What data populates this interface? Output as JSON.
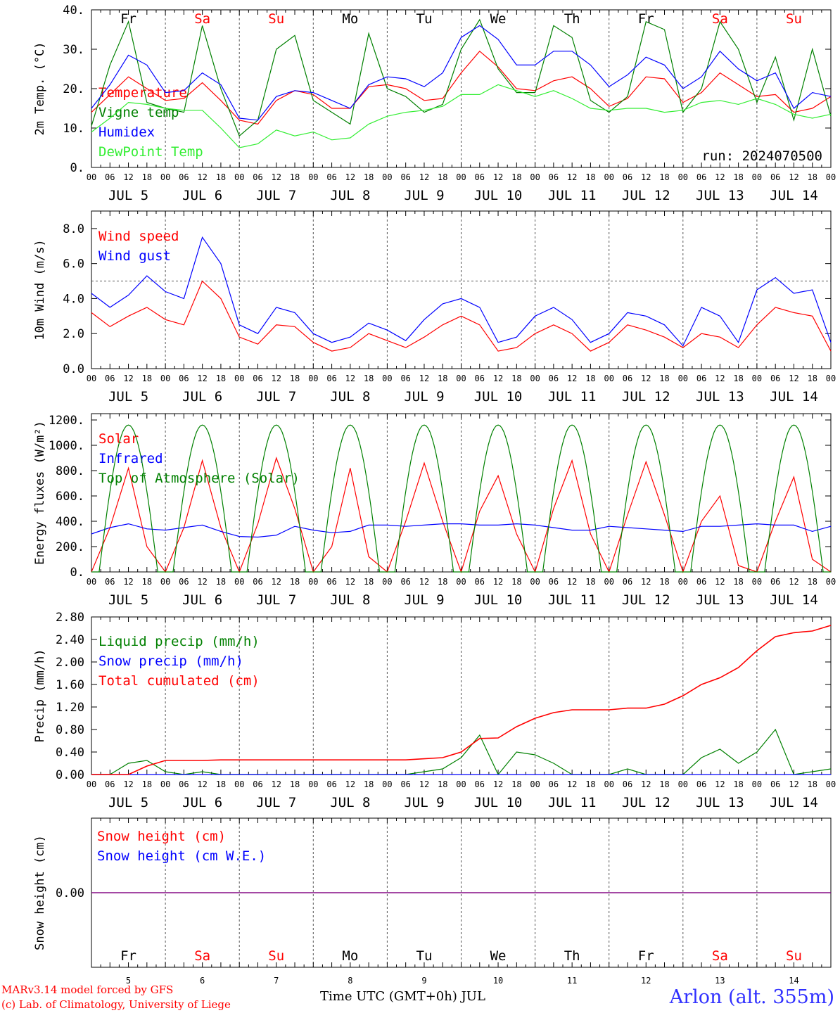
{
  "run_label": "run: 2024070500",
  "station_label": "Arlon (alt. 355m)",
  "model_credit": "MARv3.14 model forced by GFS",
  "lab_credit": "(c) Lab. of Climatology, University of Liege",
  "xaxis_title": "Time UTC (GMT+0h) JUL",
  "colors": {
    "red": "#ff0000",
    "green": "#008000",
    "blue": "#0000ff",
    "lightgreen": "#33ee33",
    "purple": "#800080"
  },
  "days": [
    {
      "dow": "Fr",
      "date": "JUL  5",
      "num": "5",
      "weekend": false
    },
    {
      "dow": "Sa",
      "date": "JUL  6",
      "num": "6",
      "weekend": true
    },
    {
      "dow": "Su",
      "date": "JUL  7",
      "num": "7",
      "weekend": true
    },
    {
      "dow": "Mo",
      "date": "JUL  8",
      "num": "8",
      "weekend": false
    },
    {
      "dow": "Tu",
      "date": "JUL  9",
      "num": "9",
      "weekend": false
    },
    {
      "dow": "We",
      "date": "JUL 10",
      "num": "10",
      "weekend": false
    },
    {
      "dow": "Th",
      "date": "JUL 11",
      "num": "11",
      "weekend": false
    },
    {
      "dow": "Fr",
      "date": "JUL 12",
      "num": "12",
      "weekend": false
    },
    {
      "dow": "Sa",
      "date": "JUL 13",
      "num": "13",
      "weekend": true
    },
    {
      "dow": "Su",
      "date": "JUL 14",
      "num": "14",
      "weekend": true
    }
  ],
  "hour_labels": [
    "00",
    "06",
    "12",
    "18"
  ],
  "end_hour_label": "00",
  "chart_data": [
    {
      "type": "line",
      "id": "temp",
      "ylabel": "2m Temp. (°C)",
      "ylim": [
        0,
        40
      ],
      "yticks": [
        0,
        10,
        20,
        30,
        40
      ],
      "ytick_labels": [
        "0.",
        "10.",
        "20.",
        "30.",
        "40."
      ],
      "x_hours": [
        0,
        6,
        12,
        18,
        24,
        30,
        36,
        42,
        48,
        54,
        60,
        66,
        72,
        78,
        84,
        90,
        96,
        102,
        108,
        114,
        120,
        126,
        132,
        138,
        144,
        150,
        156,
        162,
        168,
        174,
        180,
        186,
        192,
        198,
        204,
        210,
        216,
        222,
        228,
        234,
        240
      ],
      "series": [
        {
          "name": "Temperature",
          "color": "#ff0000",
          "values": [
            14.0,
            18.5,
            23.0,
            20.0,
            17.0,
            17.5,
            21.5,
            17.0,
            12.0,
            11.0,
            17.0,
            19.5,
            18.5,
            15.0,
            15.0,
            20.5,
            21.0,
            20.0,
            17.0,
            17.5,
            24.0,
            29.5,
            25.5,
            20.0,
            19.5,
            22.0,
            23.0,
            20.0,
            15.5,
            17.5,
            23.0,
            22.5,
            16.5,
            19.0,
            24.0,
            21.0,
            18.0,
            18.5,
            14.0,
            15.0,
            18.0
          ]
        },
        {
          "name": "Vigne temp",
          "color": "#008000",
          "values": [
            10.5,
            26.0,
            37.0,
            16.5,
            15.0,
            14.0,
            36.0,
            20.0,
            8.0,
            12.0,
            30.0,
            33.5,
            17.0,
            14.0,
            11.0,
            34.0,
            20.0,
            18.0,
            14.0,
            16.0,
            30.0,
            37.5,
            25.0,
            19.0,
            19.0,
            36.0,
            33.0,
            17.0,
            14.0,
            18.0,
            37.0,
            35.0,
            14.0,
            20.0,
            37.0,
            30.0,
            16.5,
            28.0,
            12.0,
            30.0,
            13.0
          ]
        },
        {
          "name": "Humidex",
          "color": "#0000ff",
          "values": [
            15.0,
            21.0,
            28.5,
            26.0,
            19.0,
            19.5,
            24.0,
            21.0,
            12.5,
            12.0,
            18.0,
            19.5,
            19.0,
            17.0,
            15.0,
            21.0,
            23.0,
            22.5,
            20.5,
            24.0,
            33.0,
            36.0,
            32.5,
            26.0,
            26.0,
            29.5,
            29.5,
            26.0,
            20.5,
            23.5,
            28.0,
            26.0,
            20.0,
            23.0,
            29.5,
            25.0,
            22.0,
            24.0,
            15.0,
            19.0,
            18.0
          ]
        },
        {
          "name": "DewPoint Temp",
          "color": "#33ee33",
          "values": [
            9.0,
            12.5,
            16.5,
            16.0,
            15.0,
            14.5,
            14.5,
            10.0,
            5.0,
            6.0,
            9.5,
            8.0,
            9.0,
            7.0,
            7.5,
            11.0,
            13.0,
            14.0,
            14.5,
            15.5,
            18.5,
            18.5,
            21.0,
            19.5,
            18.0,
            19.5,
            17.5,
            15.0,
            14.5,
            15.0,
            15.0,
            14.0,
            14.5,
            16.5,
            17.0,
            16.0,
            17.5,
            16.0,
            13.5,
            12.5,
            13.5
          ]
        }
      ]
    },
    {
      "type": "line",
      "id": "wind",
      "ylabel": "10m Wind (m/s)",
      "ylim": [
        0,
        9
      ],
      "yticks": [
        0,
        2,
        4,
        6,
        8
      ],
      "ytick_labels": [
        "0.0",
        "2.0",
        "4.0",
        "6.0",
        "8.0"
      ],
      "reference_line": 5.0,
      "x_hours": [
        0,
        6,
        12,
        18,
        24,
        30,
        36,
        42,
        48,
        54,
        60,
        66,
        72,
        78,
        84,
        90,
        96,
        102,
        108,
        114,
        120,
        126,
        132,
        138,
        144,
        150,
        156,
        162,
        168,
        174,
        180,
        186,
        192,
        198,
        204,
        210,
        216,
        222,
        228,
        234,
        240
      ],
      "series": [
        {
          "name": "Wind speed",
          "color": "#ff0000",
          "values": [
            3.2,
            2.4,
            3.0,
            3.5,
            2.8,
            2.5,
            5.0,
            4.0,
            1.8,
            1.4,
            2.5,
            2.4,
            1.5,
            1.0,
            1.2,
            2.0,
            1.6,
            1.2,
            1.8,
            2.5,
            3.0,
            2.5,
            1.0,
            1.2,
            2.0,
            2.5,
            2.0,
            1.0,
            1.5,
            2.5,
            2.2,
            1.8,
            1.2,
            2.0,
            1.8,
            1.2,
            2.5,
            3.5,
            3.2,
            3.0,
            1.0
          ]
        },
        {
          "name": "Wind gust",
          "color": "#0000ff",
          "values": [
            4.3,
            3.5,
            4.2,
            5.3,
            4.4,
            4.0,
            7.5,
            6.0,
            2.5,
            2.0,
            3.5,
            3.2,
            2.0,
            1.5,
            1.8,
            2.6,
            2.2,
            1.6,
            2.8,
            3.7,
            4.0,
            3.5,
            1.5,
            1.8,
            3.0,
            3.5,
            2.8,
            1.5,
            2.0,
            3.2,
            3.0,
            2.5,
            1.3,
            3.5,
            3.0,
            1.5,
            4.5,
            5.2,
            4.3,
            4.5,
            1.5
          ]
        }
      ]
    },
    {
      "type": "line",
      "id": "energy",
      "ylabel": "Energy fluxes (W/m²)",
      "ylim": [
        0,
        1250
      ],
      "yticks": [
        0,
        200,
        400,
        600,
        800,
        1000,
        1200
      ],
      "ytick_labels": [
        "0.",
        "200.",
        "400.",
        "600.",
        "800.",
        "1000.",
        "1200."
      ],
      "x_hours": [
        0,
        6,
        12,
        18,
        24,
        30,
        36,
        42,
        48,
        54,
        60,
        66,
        72,
        78,
        84,
        90,
        96,
        102,
        108,
        114,
        120,
        126,
        132,
        138,
        144,
        150,
        156,
        162,
        168,
        174,
        180,
        186,
        192,
        198,
        204,
        210,
        216,
        222,
        228,
        234,
        240
      ],
      "series": [
        {
          "name": "Solar",
          "color": "#ff0000",
          "values": [
            0,
            350,
            820,
            200,
            0,
            350,
            880,
            350,
            0,
            380,
            900,
            500,
            0,
            200,
            820,
            120,
            0,
            400,
            860,
            400,
            0,
            480,
            760,
            300,
            0,
            500,
            880,
            300,
            0,
            450,
            870,
            450,
            0,
            400,
            600,
            50,
            0,
            400,
            750,
            100,
            0
          ]
        },
        {
          "name": "Infrared",
          "color": "#0000ff",
          "values": [
            300,
            350,
            380,
            340,
            330,
            350,
            370,
            320,
            280,
            275,
            290,
            360,
            330,
            310,
            320,
            370,
            370,
            360,
            370,
            380,
            380,
            370,
            370,
            380,
            370,
            350,
            330,
            330,
            360,
            350,
            340,
            330,
            320,
            360,
            360,
            370,
            380,
            370,
            370,
            320,
            360
          ]
        },
        {
          "name": "Top of Atmosphere (Solar)",
          "color": "#008000",
          "curve": "daily_peak",
          "peak": 1160,
          "sunrise_hour": 2.5,
          "sunset_hour": 21.5
        }
      ]
    },
    {
      "type": "line",
      "id": "precip",
      "ylabel": "Precip (mm/h)",
      "ylim": [
        0,
        2.8
      ],
      "yticks": [
        0,
        0.4,
        0.8,
        1.2,
        1.6,
        2.0,
        2.4,
        2.8
      ],
      "ytick_labels": [
        "0.00",
        "0.40",
        "0.80",
        "1.20",
        "1.60",
        "2.00",
        "2.40",
        "2.80"
      ],
      "x_hours": [
        0,
        6,
        12,
        18,
        24,
        30,
        36,
        42,
        48,
        54,
        60,
        66,
        72,
        78,
        84,
        90,
        96,
        102,
        108,
        114,
        120,
        126,
        132,
        138,
        144,
        150,
        156,
        162,
        168,
        174,
        180,
        186,
        192,
        198,
        204,
        210,
        216,
        222,
        228,
        234,
        240
      ],
      "series": [
        {
          "name": "Liquid precip (mm/h)",
          "color": "#008000",
          "values": [
            0,
            0,
            0.2,
            0.25,
            0.05,
            0,
            0.05,
            0,
            0,
            0,
            0,
            0,
            0,
            0,
            0,
            0,
            0,
            0,
            0.05,
            0.1,
            0.3,
            0.7,
            0,
            0.4,
            0.35,
            0.2,
            0,
            0,
            0,
            0.1,
            0,
            0,
            0,
            0.3,
            0.45,
            0.2,
            0.4,
            0.8,
            0,
            0.05,
            0.1
          ]
        },
        {
          "name": "Snow precip (mm/h)",
          "color": "#0000ff",
          "values": [
            0,
            0,
            0,
            0,
            0,
            0,
            0,
            0,
            0,
            0,
            0,
            0,
            0,
            0,
            0,
            0,
            0,
            0,
            0,
            0,
            0,
            0,
            0,
            0,
            0,
            0,
            0,
            0,
            0,
            0,
            0,
            0,
            0,
            0,
            0,
            0,
            0,
            0,
            0,
            0,
            0
          ]
        },
        {
          "name": "Total cumulated (cm)",
          "color": "#ff0000",
          "values": [
            0,
            0,
            0,
            0.15,
            0.25,
            0.25,
            0.25,
            0.26,
            0.26,
            0.26,
            0.26,
            0.26,
            0.26,
            0.26,
            0.26,
            0.26,
            0.26,
            0.26,
            0.28,
            0.3,
            0.4,
            0.64,
            0.65,
            0.85,
            1.0,
            1.1,
            1.15,
            1.15,
            1.15,
            1.18,
            1.18,
            1.25,
            1.4,
            1.6,
            1.72,
            1.9,
            2.2,
            2.45,
            2.52,
            2.55,
            2.65
          ]
        }
      ]
    },
    {
      "type": "line",
      "id": "snow",
      "ylabel": "Snow height (cm)",
      "ylim": [
        -1,
        1
      ],
      "yticks": [
        0
      ],
      "ytick_labels": [
        "0.00"
      ],
      "x_hours": [
        0,
        240
      ],
      "series": [
        {
          "name": "Snow height (cm)",
          "color": "#ff0000",
          "values": [
            0,
            0
          ]
        },
        {
          "name": "Snow height (cm W.E.)",
          "color": "#0000ff",
          "values": [
            0,
            0
          ]
        }
      ]
    }
  ]
}
